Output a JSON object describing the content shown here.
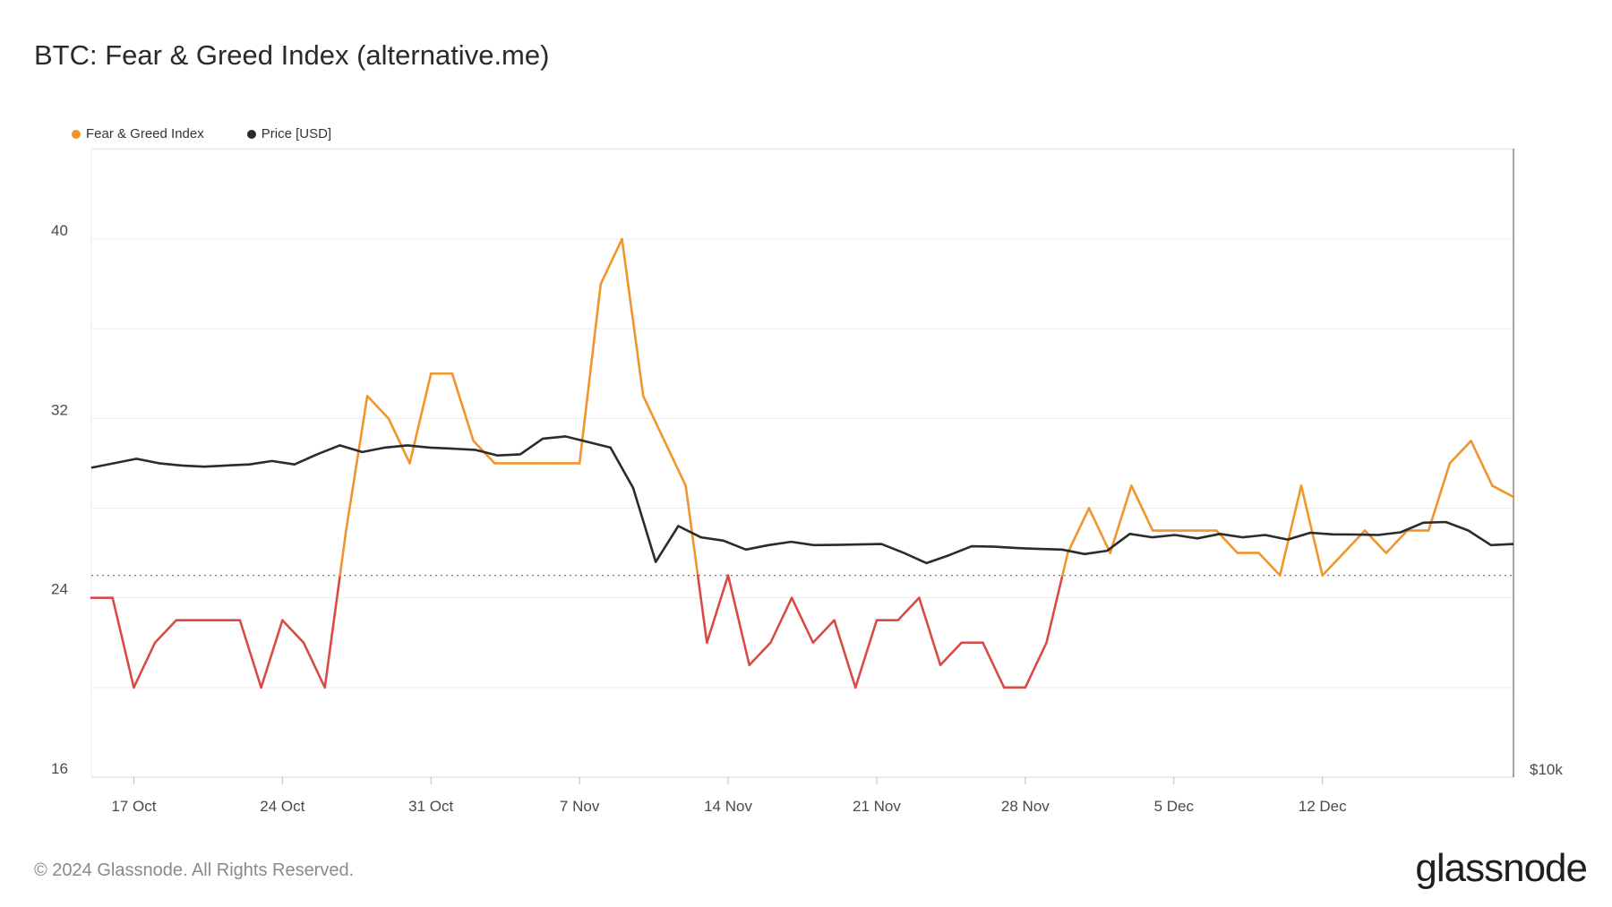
{
  "header": {
    "title": "BTC: Fear & Greed Index (alternative.me)"
  },
  "legend": [
    {
      "label": "Fear & Greed Index",
      "color": "#f0952c"
    },
    {
      "label": "Price [USD]",
      "color": "#2b2b2b"
    }
  ],
  "footer": {
    "copyright": "© 2024 Glassnode. All Rights Reserved.",
    "brand": "glassnode"
  },
  "colors": {
    "greed_line": "#f0952c",
    "fear_line": "#d94a45",
    "price_line": "#2b2b2b",
    "grid": "#ececec"
  },
  "chart_data": {
    "type": "line",
    "title": "BTC: Fear & Greed Index (alternative.me)",
    "x_tick_labels": [
      "17 Oct",
      "24 Oct",
      "31 Oct",
      "7 Nov",
      "14 Nov",
      "21 Nov",
      "28 Nov",
      "5 Dec",
      "12 Dec"
    ],
    "y_left": {
      "ticks": [
        16,
        24,
        32,
        40
      ],
      "range": [
        16,
        40
      ]
    },
    "y_right": {
      "ticks": [
        "$10k"
      ]
    },
    "threshold": 25,
    "threshold_note": "dotted reference line; values below are drawn red, above orange",
    "x_start": "15 Oct",
    "x_end": "16 Dec",
    "series": [
      {
        "name": "Fear & Greed Index",
        "values": [
          24,
          24,
          20,
          22,
          23,
          23,
          23,
          23,
          20,
          23,
          22,
          20,
          27,
          33,
          32,
          30,
          34,
          34,
          31,
          30,
          30,
          30,
          30,
          30,
          38,
          40,
          33,
          31,
          29,
          22,
          25,
          21,
          22,
          24,
          22,
          23,
          20,
          23,
          23,
          24,
          21,
          22,
          22,
          20,
          20,
          22,
          26,
          28,
          26,
          29,
          27,
          27,
          27,
          27,
          26,
          26,
          25,
          29,
          25,
          26,
          27,
          26,
          27,
          27,
          30,
          31,
          29,
          28.5
        ]
      },
      {
        "name": "Price [USD]",
        "values": [
          29.8,
          30.0,
          30.2,
          30.0,
          29.9,
          29.85,
          29.9,
          29.95,
          30.1,
          29.95,
          30.4,
          30.8,
          30.5,
          30.7,
          30.8,
          30.7,
          30.65,
          30.6,
          30.35,
          30.4,
          31.1,
          31.2,
          30.95,
          30.7,
          28.9,
          25.6,
          27.2,
          26.7,
          26.55,
          26.15,
          26.35,
          26.5,
          26.35,
          26.36,
          26.38,
          26.4,
          26.0,
          25.55,
          25.9,
          26.3,
          26.28,
          26.22,
          26.18,
          26.15,
          25.95,
          26.1,
          26.85,
          26.7,
          26.8,
          26.65,
          26.85,
          26.7,
          26.8,
          26.6,
          26.9,
          26.83,
          26.82,
          26.8,
          26.92,
          27.35,
          27.38,
          27.0,
          26.35,
          26.4
        ]
      }
    ]
  }
}
